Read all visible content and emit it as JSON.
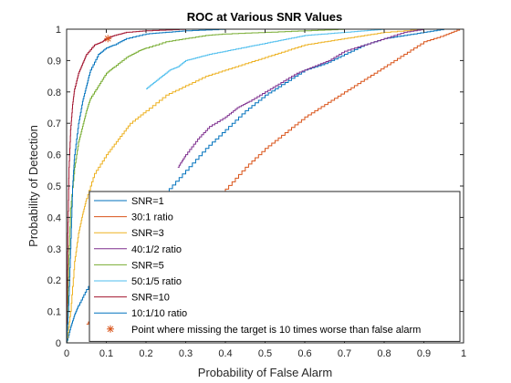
{
  "chart_data": {
    "type": "line",
    "title": "ROC at Various SNR Values",
    "xlabel": "Probability of False Alarm",
    "ylabel": "Probability of Detection",
    "xlim": [
      0,
      1
    ],
    "ylim": [
      0,
      1
    ],
    "xticks": [
      "0",
      "0.1",
      "0.2",
      "0.3",
      "0.4",
      "0.5",
      "0.6",
      "0.7",
      "0.8",
      "0.9",
      "1"
    ],
    "yticks": [
      "0",
      "0.1",
      "0.2",
      "0.3",
      "0.4",
      "0.5",
      "0.6",
      "0.7",
      "0.8",
      "0.9",
      "1"
    ],
    "grid": false,
    "legend_position": "bottom-right",
    "series": [
      {
        "name": "SNR=1",
        "color": "#0072BD",
        "style": "empirical",
        "x": [
          0,
          0.01,
          0.02,
          0.03,
          0.05,
          0.08,
          0.12,
          0.16,
          0.2,
          0.25,
          0.3,
          0.35,
          0.4,
          0.45,
          0.5,
          0.55,
          0.6,
          0.65,
          0.7,
          0.75,
          0.8,
          0.85,
          0.9,
          0.95,
          1
        ],
        "y": [
          0,
          0.05,
          0.09,
          0.12,
          0.17,
          0.23,
          0.3,
          0.36,
          0.43,
          0.48,
          0.55,
          0.62,
          0.68,
          0.74,
          0.79,
          0.83,
          0.87,
          0.89,
          0.92,
          0.95,
          0.97,
          0.98,
          0.99,
          1.0,
          1.0
        ]
      },
      {
        "name": "30:1 ratio",
        "color": "#D95319",
        "style": "segment",
        "x": [
          0.05,
          0.08,
          0.12,
          0.16,
          0.2,
          0.25,
          0.3,
          0.35,
          0.4,
          0.45,
          0.5,
          0.55,
          0.6,
          0.65,
          0.7,
          0.75,
          0.8,
          0.85,
          0.9,
          0.95,
          0.99
        ],
        "y": [
          0.06,
          0.1,
          0.14,
          0.19,
          0.24,
          0.3,
          0.37,
          0.44,
          0.49,
          0.56,
          0.62,
          0.67,
          0.72,
          0.76,
          0.8,
          0.84,
          0.88,
          0.92,
          0.96,
          0.98,
          1.0
        ]
      },
      {
        "name": "SNR=3",
        "color": "#EDB120",
        "style": "empirical",
        "x": [
          0,
          0.01,
          0.02,
          0.03,
          0.04,
          0.05,
          0.07,
          0.1,
          0.13,
          0.16,
          0.2,
          0.25,
          0.3,
          0.35,
          0.4,
          0.45,
          0.5,
          0.55,
          0.6,
          0.65,
          0.7,
          0.75,
          0.8,
          0.9,
          1
        ],
        "y": [
          0,
          0.1,
          0.26,
          0.35,
          0.41,
          0.46,
          0.54,
          0.6,
          0.65,
          0.7,
          0.74,
          0.79,
          0.82,
          0.85,
          0.87,
          0.89,
          0.91,
          0.93,
          0.95,
          0.96,
          0.97,
          0.98,
          0.99,
          1.0,
          1.0
        ]
      },
      {
        "name": "40:1/2 ratio",
        "color": "#7E2F8E",
        "style": "segment",
        "x": [
          0.28,
          0.3,
          0.33,
          0.36,
          0.4,
          0.43,
          0.46,
          0.5,
          0.54,
          0.58,
          0.62,
          0.66,
          0.7,
          0.75,
          0.8,
          0.85,
          0.9
        ],
        "y": [
          0.56,
          0.6,
          0.65,
          0.69,
          0.72,
          0.75,
          0.77,
          0.8,
          0.83,
          0.86,
          0.88,
          0.9,
          0.93,
          0.95,
          0.97,
          0.99,
          1.0
        ]
      },
      {
        "name": "SNR=5",
        "color": "#77AC30",
        "style": "empirical",
        "x": [
          0,
          0.005,
          0.01,
          0.02,
          0.03,
          0.04,
          0.05,
          0.06,
          0.08,
          0.1,
          0.12,
          0.15,
          0.18,
          0.2,
          0.25,
          0.3,
          0.35,
          0.4,
          0.5,
          0.6,
          0.7,
          0.8,
          0.9,
          1
        ],
        "y": [
          0,
          0.25,
          0.43,
          0.56,
          0.64,
          0.69,
          0.74,
          0.78,
          0.82,
          0.86,
          0.88,
          0.91,
          0.93,
          0.94,
          0.96,
          0.97,
          0.98,
          0.985,
          0.99,
          0.995,
          1.0,
          1.0,
          1.0,
          1.0
        ]
      },
      {
        "name": "50:1/5 ratio",
        "color": "#4DBEEE",
        "style": "segment",
        "x": [
          0.2,
          0.22,
          0.24,
          0.26,
          0.28,
          0.3,
          0.33,
          0.36,
          0.4,
          0.44,
          0.48,
          0.52,
          0.56,
          0.6,
          0.65,
          0.7,
          0.75,
          0.8
        ],
        "y": [
          0.81,
          0.83,
          0.85,
          0.87,
          0.88,
          0.9,
          0.91,
          0.92,
          0.93,
          0.94,
          0.95,
          0.96,
          0.97,
          0.98,
          0.985,
          0.99,
          0.995,
          1.0
        ]
      },
      {
        "name": "SNR=10",
        "color": "#A2142F",
        "style": "empirical",
        "x": [
          0,
          0.003,
          0.006,
          0.01,
          0.015,
          0.02,
          0.03,
          0.04,
          0.05,
          0.07,
          0.09,
          0.1,
          0.12,
          0.15,
          0.2,
          0.3,
          0.4,
          0.5,
          0.7,
          1
        ],
        "y": [
          0,
          0.35,
          0.56,
          0.68,
          0.76,
          0.81,
          0.86,
          0.89,
          0.92,
          0.95,
          0.96,
          0.97,
          0.98,
          0.99,
          0.995,
          1.0,
          1.0,
          1.0,
          1.0,
          1.0
        ]
      },
      {
        "name": "10:1/10 ratio",
        "color": "#0072BD",
        "style": "empirical",
        "x": [
          0,
          0.005,
          0.01,
          0.015,
          0.02,
          0.03,
          0.04,
          0.05,
          0.06,
          0.08,
          0.1,
          0.12,
          0.15,
          0.2,
          0.25,
          0.3,
          0.4,
          0.5,
          0.7,
          1
        ],
        "y": [
          0,
          0.12,
          0.3,
          0.5,
          0.6,
          0.7,
          0.77,
          0.82,
          0.87,
          0.92,
          0.94,
          0.95,
          0.97,
          0.985,
          0.99,
          0.995,
          1.0,
          1.0,
          1.0,
          1.0
        ]
      }
    ],
    "marker_point": {
      "label": "Point where missing the target is 10 times worse than false alarm",
      "color": "#D95319",
      "marker": "asterisk",
      "x": 0.104,
      "y": 0.97
    }
  }
}
